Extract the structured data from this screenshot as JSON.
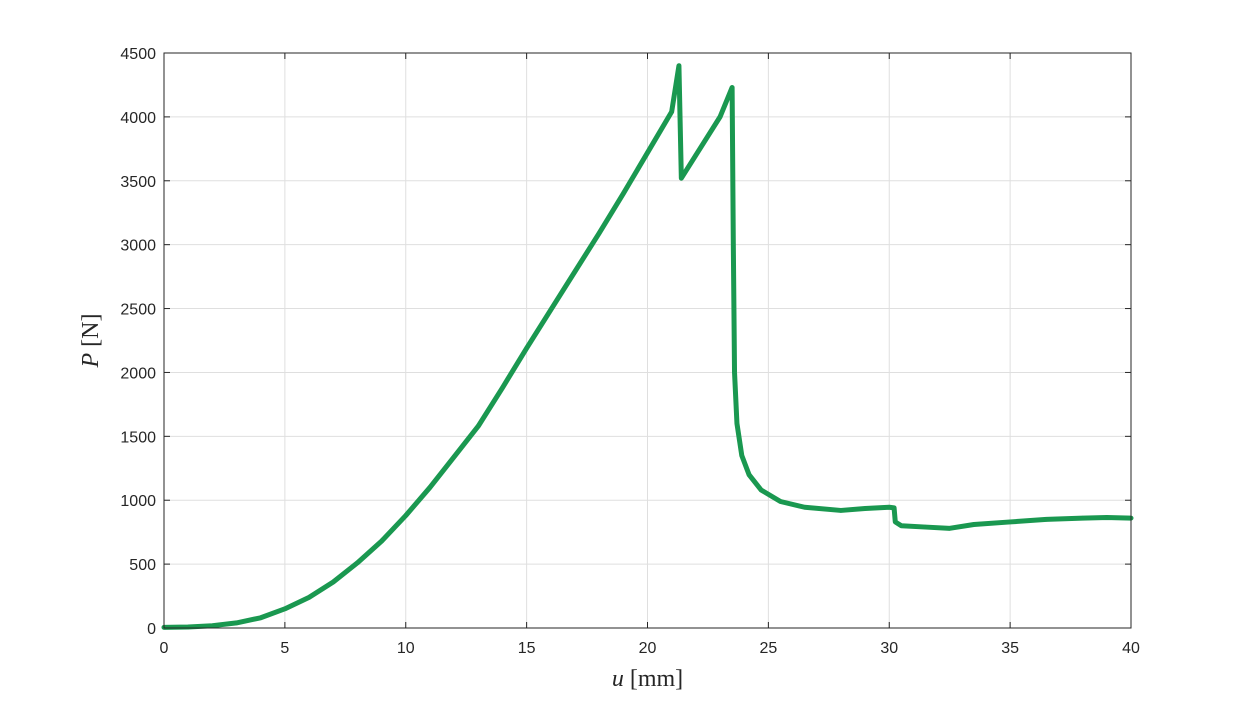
{
  "chart_data": {
    "type": "line",
    "title": "",
    "xlabel": {
      "symbol": "u",
      "unit": "[mm]"
    },
    "ylabel": {
      "symbol": "P",
      "unit": "[N]"
    },
    "xlim": [
      0,
      40
    ],
    "ylim": [
      0,
      4500
    ],
    "xticks": [
      0,
      5,
      10,
      15,
      20,
      25,
      30,
      35,
      40
    ],
    "yticks": [
      0,
      500,
      1000,
      1500,
      2000,
      2500,
      3000,
      3500,
      4000,
      4500
    ],
    "grid": true,
    "legend": "none",
    "series": [
      {
        "color": "#1a9850",
        "points": [
          [
            0,
            5
          ],
          [
            1,
            8
          ],
          [
            2,
            18
          ],
          [
            3,
            40
          ],
          [
            4,
            80
          ],
          [
            5,
            150
          ],
          [
            6,
            240
          ],
          [
            7,
            360
          ],
          [
            8,
            510
          ],
          [
            9,
            680
          ],
          [
            10,
            880
          ],
          [
            11,
            1100
          ],
          [
            12,
            1340
          ],
          [
            13,
            1580
          ],
          [
            14,
            1880
          ],
          [
            15,
            2190
          ],
          [
            16,
            2490
          ],
          [
            17,
            2790
          ],
          [
            18,
            3090
          ],
          [
            19,
            3400
          ],
          [
            20,
            3720
          ],
          [
            21,
            4040
          ],
          [
            21.3,
            4400
          ],
          [
            21.4,
            3520
          ],
          [
            22,
            3700
          ],
          [
            23,
            4000
          ],
          [
            23.5,
            4230
          ],
          [
            23.55,
            3000
          ],
          [
            23.6,
            2000
          ],
          [
            23.7,
            1600
          ],
          [
            23.9,
            1350
          ],
          [
            24.2,
            1200
          ],
          [
            24.7,
            1080
          ],
          [
            25.5,
            990
          ],
          [
            26.5,
            945
          ],
          [
            28,
            920
          ],
          [
            29,
            935
          ],
          [
            30,
            945
          ],
          [
            30.2,
            940
          ],
          [
            30.25,
            830
          ],
          [
            30.5,
            800
          ],
          [
            31.5,
            790
          ],
          [
            32.5,
            780
          ],
          [
            33.5,
            810
          ],
          [
            35,
            830
          ],
          [
            36.5,
            850
          ],
          [
            38,
            860
          ],
          [
            39,
            865
          ],
          [
            40,
            860
          ]
        ]
      }
    ]
  }
}
